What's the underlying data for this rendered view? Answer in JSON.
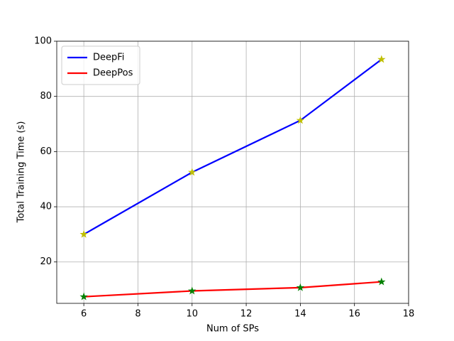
{
  "chart_data": {
    "type": "line",
    "x_label": "Num of SPs",
    "y_label": "Total Training Time (s)",
    "x": [
      6,
      10,
      14,
      17
    ],
    "series": [
      {
        "name": "DeepFi",
        "color": "#0000ff",
        "marker_color": "#bfbf00",
        "values": [
          30,
          52.5,
          71.3,
          93.4
        ]
      },
      {
        "name": "DeepPos",
        "color": "#ff0000",
        "marker_color": "#008000",
        "values": [
          7.4,
          9.5,
          10.7,
          12.8
        ]
      }
    ],
    "xlim": [
      5,
      18
    ],
    "xticks": [
      6,
      8,
      10,
      12,
      14,
      16,
      18
    ],
    "ylim": [
      5,
      100
    ],
    "yticks": [
      20,
      40,
      60,
      80,
      100
    ],
    "grid": true,
    "legend": "upper-left"
  }
}
